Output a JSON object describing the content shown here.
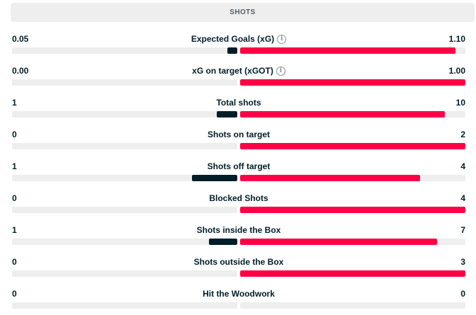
{
  "header": {
    "title": "SHOTS"
  },
  "colors": {
    "home": "#001e28",
    "away": "#ff0046",
    "track": "#eeeeee"
  },
  "stats": [
    {
      "label": "Expected Goals (xG)",
      "home": "0.05",
      "away": "1.10",
      "home_share": 0.043,
      "away_share": 0.957,
      "info": true,
      "info_icon": "info-icon"
    },
    {
      "label": "xG on target (xGOT)",
      "home": "0.00",
      "away": "1.00",
      "home_share": 0.0,
      "away_share": 1.0,
      "info": true,
      "info_icon": "info-icon"
    },
    {
      "label": "Total shots",
      "home": "1",
      "away": "10",
      "home_share": 0.091,
      "away_share": 0.909
    },
    {
      "label": "Shots on target",
      "home": "0",
      "away": "2",
      "home_share": 0.0,
      "away_share": 1.0
    },
    {
      "label": "Shots off target",
      "home": "1",
      "away": "4",
      "home_share": 0.2,
      "away_share": 0.8
    },
    {
      "label": "Blocked Shots",
      "home": "0",
      "away": "4",
      "home_share": 0.0,
      "away_share": 1.0
    },
    {
      "label": "Shots inside the Box",
      "home": "1",
      "away": "7",
      "home_share": 0.125,
      "away_share": 0.875
    },
    {
      "label": "Shots outside the Box",
      "home": "0",
      "away": "3",
      "home_share": 0.0,
      "away_share": 1.0
    },
    {
      "label": "Hit the Woodwork",
      "home": "0",
      "away": "0",
      "home_share": 0.0,
      "away_share": 0.0
    }
  ]
}
